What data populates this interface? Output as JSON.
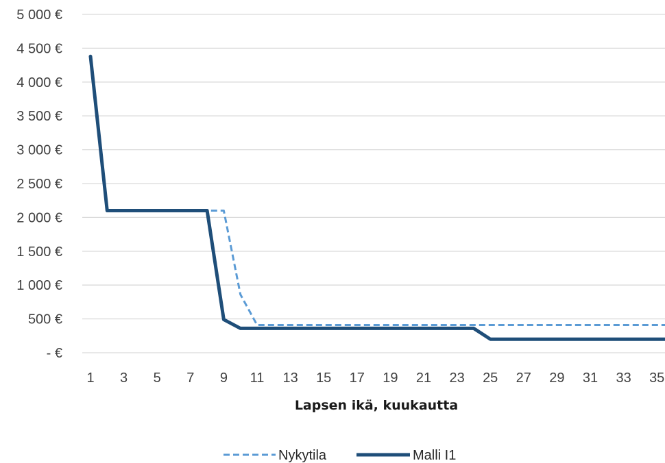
{
  "chart_data": {
    "type": "line",
    "title": "",
    "xlabel": "Lapsen ikä, kuukautta",
    "ylabel": "",
    "ylim": [
      0,
      5000
    ],
    "xlim": [
      1,
      36
    ],
    "y_ticks": [
      0,
      500,
      1000,
      1500,
      2000,
      2500,
      3000,
      3500,
      4000,
      4500,
      5000
    ],
    "y_tick_labels": [
      "-  €",
      "500 €",
      "1 000 €",
      "1 500 €",
      "2 000 €",
      "2 500 €",
      "3 000 €",
      "3 500 €",
      "4 000 €",
      "4 500 €",
      "5 000 €"
    ],
    "x_ticks": [
      1,
      3,
      5,
      7,
      9,
      11,
      13,
      15,
      17,
      19,
      21,
      23,
      25,
      27,
      29,
      31,
      33,
      35
    ],
    "x_tick_labels": [
      "1",
      "3",
      "5",
      "7",
      "9",
      "11",
      "13",
      "15",
      "17",
      "19",
      "21",
      "23",
      "25",
      "27",
      "29",
      "31",
      "33",
      "35"
    ],
    "grid": true,
    "legend_position": "bottom",
    "x": [
      1,
      2,
      3,
      4,
      5,
      6,
      7,
      8,
      9,
      10,
      11,
      12,
      13,
      14,
      15,
      16,
      17,
      18,
      19,
      20,
      21,
      22,
      23,
      24,
      25,
      26,
      27,
      28,
      29,
      30,
      31,
      32,
      33,
      34,
      35,
      36
    ],
    "series": [
      {
        "name": "Nykytila",
        "color": "#5b9bd5",
        "style": "dashed",
        "values": [
          4380,
          2100,
          2100,
          2100,
          2100,
          2100,
          2100,
          2100,
          2100,
          860,
          410,
          410,
          410,
          410,
          410,
          410,
          410,
          410,
          410,
          410,
          410,
          410,
          410,
          410,
          410,
          410,
          410,
          410,
          410,
          410,
          410,
          410,
          410,
          410,
          410,
          410
        ]
      },
      {
        "name": "Malli I1",
        "color": "#1f4e79",
        "style": "solid",
        "values": [
          4380,
          2100,
          2100,
          2100,
          2100,
          2100,
          2100,
          2100,
          490,
          360,
          360,
          360,
          360,
          360,
          360,
          360,
          360,
          360,
          360,
          360,
          360,
          360,
          360,
          360,
          200,
          200,
          200,
          200,
          200,
          200,
          200,
          200,
          200,
          200,
          200,
          200
        ]
      }
    ]
  }
}
